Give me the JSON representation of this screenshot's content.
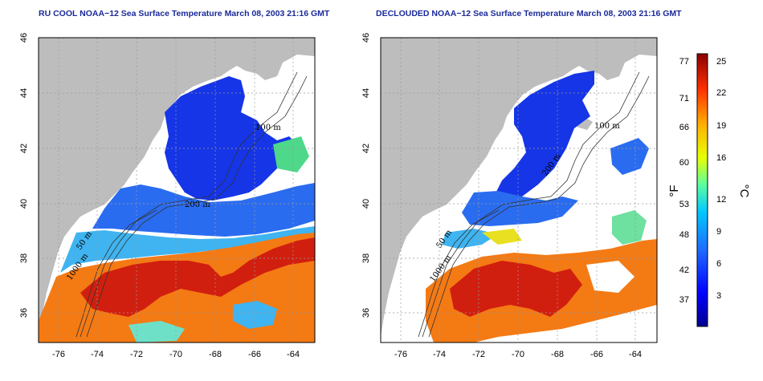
{
  "panels": [
    {
      "title": "RU COOL NOAA−12 Sea Surface Temperature March 08, 2003 21:16 GMT",
      "isobath_labels": [
        "100 m",
        "200 m",
        "50 m",
        "1000 m"
      ]
    },
    {
      "title": "DECLOUDED NOAA−12 Sea Surface Temperature March 08, 2003 21:16 GMT",
      "isobath_labels": [
        "100 m",
        "200 m",
        "50 m",
        "1000 m"
      ]
    }
  ],
  "map_extent": {
    "lon": [
      -77,
      -63
    ],
    "lat": [
      35,
      46
    ]
  },
  "x_ticks": [
    "-76",
    "-74",
    "-72",
    "-70",
    "-68",
    "-66",
    "-64"
  ],
  "y_ticks": [
    "36",
    "38",
    "40",
    "42",
    "44",
    "46"
  ],
  "colorbar": {
    "fahrenheit_label": "°F",
    "celsius_label": "°C",
    "fahrenheit_ticks": [
      "77",
      "71",
      "66",
      "60",
      "53",
      "48",
      "42",
      "37"
    ],
    "celsius_ticks": [
      "25",
      "22",
      "19",
      "16",
      "12",
      "9",
      "6",
      "3"
    ],
    "colors": [
      "#00008f",
      "#0000ff",
      "#1f6bff",
      "#00c8ff",
      "#5dffa0",
      "#e8ff00",
      "#ffb000",
      "#ff3000",
      "#8b0000"
    ]
  },
  "colors": {
    "land": "#bdbdbd",
    "cloud": "#ffffff",
    "title": "#1a2a9a",
    "grid": "#9a9a9a"
  }
}
